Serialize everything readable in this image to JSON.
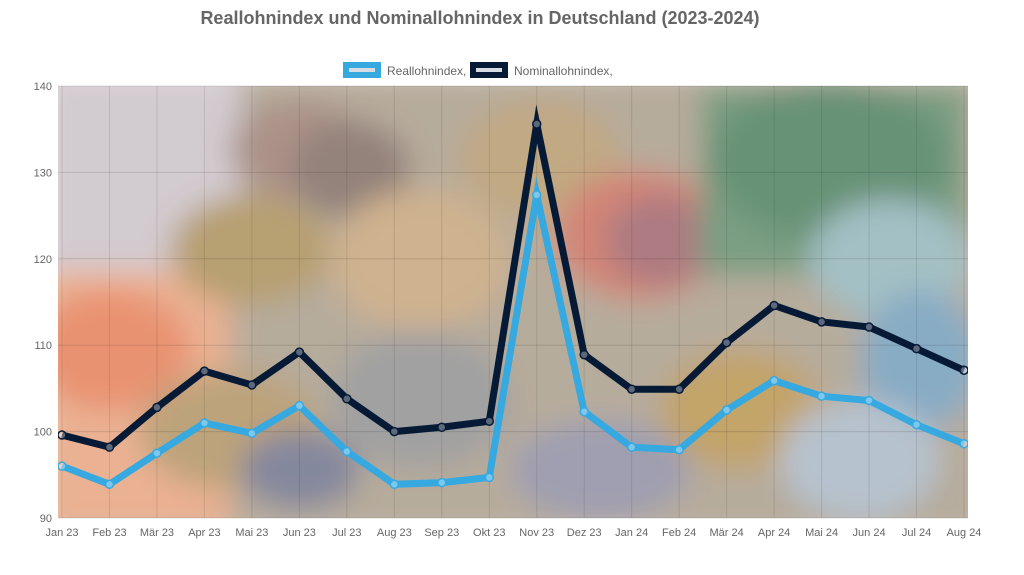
{
  "chart_data": {
    "type": "line",
    "title": "Reallohnindex und Nominallohnindex in Deutschland (2023-2024)",
    "xlabel": "",
    "ylabel": "",
    "categories": [
      "Jan 23",
      "Feb 23",
      "Mär 23",
      "Apr 23",
      "Mai 23",
      "Jun 23",
      "Jul 23",
      "Aug 23",
      "Sep 23",
      "Okt 23",
      "Nov 23",
      "Dez 23",
      "Jan 24",
      "Feb 24",
      "Mär 24",
      "Apr 24",
      "Mai 24",
      "Jun 24",
      "Jul 24",
      "Aug 24"
    ],
    "ylim": [
      90,
      140
    ],
    "yticks": [
      90,
      100,
      110,
      120,
      130,
      140
    ],
    "grid": true,
    "legend_position": "top",
    "background": "blurred photo of euro coins and banknotes",
    "series": [
      {
        "name": "Reallohnindex,",
        "color": "#36a9e1",
        "values": [
          96.0,
          93.9,
          97.5,
          101.0,
          99.8,
          103.0,
          97.7,
          93.9,
          94.1,
          94.7,
          127.4,
          102.3,
          98.2,
          97.9,
          102.5,
          105.9,
          104.1,
          103.6,
          100.8,
          98.6
        ]
      },
      {
        "name": "Nominallohnindex,",
        "color": "#061a36",
        "values": [
          99.6,
          98.2,
          102.8,
          107.0,
          105.4,
          109.2,
          103.8,
          100.0,
          100.5,
          101.2,
          135.6,
          108.9,
          104.9,
          104.9,
          110.3,
          114.6,
          112.7,
          112.1,
          109.6,
          107.1
        ]
      }
    ]
  }
}
